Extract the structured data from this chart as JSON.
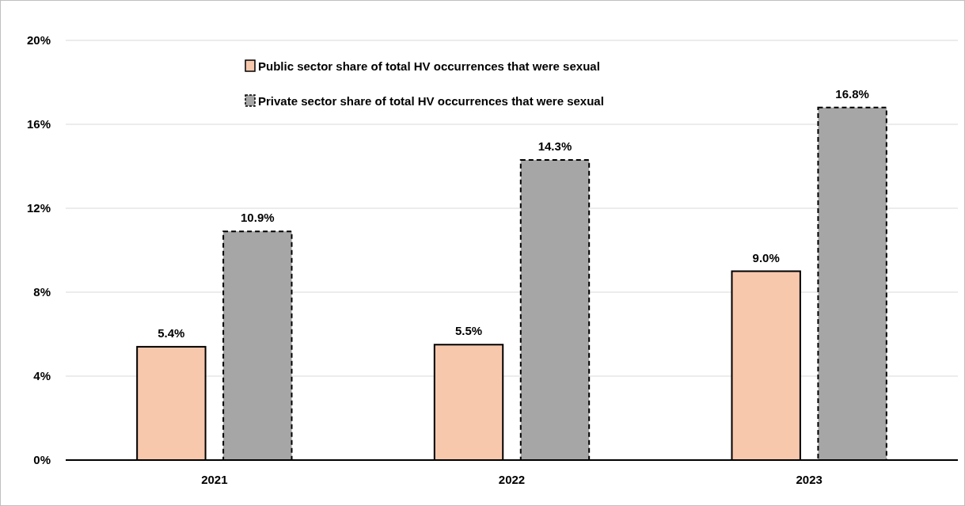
{
  "chart_data": {
    "type": "bar",
    "categories": [
      "2021",
      "2022",
      "2023"
    ],
    "series": [
      {
        "name": "Public sector share of total HV occurrences that were sexual",
        "color": "#f8c8ad",
        "values": [
          5.4,
          5.5,
          9.0
        ],
        "value_labels": [
          "5.4%",
          "5.5%",
          "9.0%"
        ],
        "line_style": "solid"
      },
      {
        "name": "Private sector share of total HV occurrences that were sexual",
        "color": "#a6a6a6",
        "values": [
          10.9,
          14.3,
          16.8
        ],
        "value_labels": [
          "10.9%",
          "14.3%",
          "16.8%"
        ],
        "line_style": "dashed"
      }
    ],
    "ylim": [
      0,
      20
    ],
    "yticks": [
      {
        "value": 0,
        "label": "0%"
      },
      {
        "value": 4,
        "label": "4%"
      },
      {
        "value": 8,
        "label": "8%"
      },
      {
        "value": 12,
        "label": "12%"
      },
      {
        "value": 16,
        "label": "16%"
      },
      {
        "value": 20,
        "label": "20%"
      }
    ],
    "grid": "y",
    "legend": "top"
  }
}
